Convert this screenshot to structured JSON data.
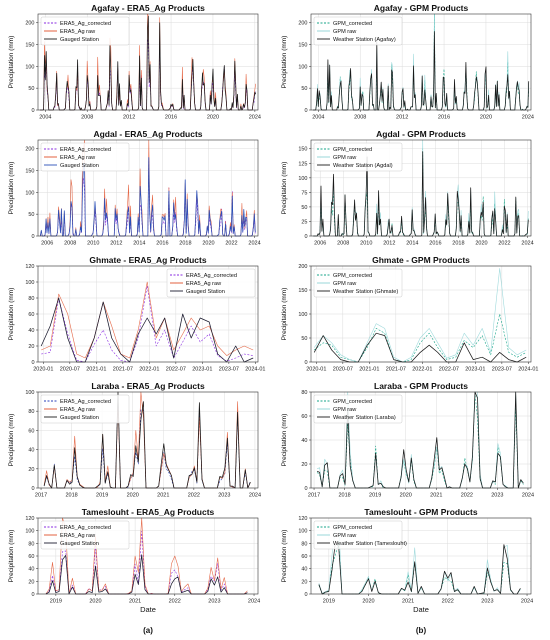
{
  "figure": {
    "column_labels": [
      "(a)",
      "(b)"
    ],
    "xlabel": "Date"
  },
  "chart_data": [
    {
      "type": "line",
      "column": 0,
      "row": 0,
      "title": "Agafay - ERA5_Ag Products",
      "ylabel": "Precipitation (mm)",
      "xlabel": "",
      "x_range": [
        2003.3,
        2024.3
      ],
      "ylim": [
        0,
        220
      ],
      "xticks": [
        2004,
        2008,
        2012,
        2016,
        2020,
        2024
      ],
      "xtick_labels": [
        "2004",
        "2008",
        "2012",
        "2016",
        "2020",
        "2024"
      ],
      "yticks": [
        0,
        50,
        100,
        150,
        200
      ],
      "legend": "top-left",
      "grid": true,
      "seed": 11,
      "series": [
        {
          "name": "ERA5_Ag_corrected",
          "color": "#8a2be2",
          "dash": "2,1.5",
          "scale": 0.85
        },
        {
          "name": "ERA5_Ag raw",
          "color": "#e0502a",
          "dash": "",
          "scale": 1.1
        },
        {
          "name": "Gauged Station",
          "color": "#1a1a1a",
          "dash": "",
          "scale": 1.0
        }
      ],
      "peaks": [
        {
          "x": 2003.9,
          "y": 125
        },
        {
          "x": 2013.8,
          "y": 210
        },
        {
          "x": 2014.9,
          "y": 220
        },
        {
          "x": 2010.2,
          "y": 120
        }
      ]
    },
    {
      "type": "line",
      "column": 1,
      "row": 0,
      "title": "Agafay - GPM Products",
      "ylabel": "Precipitation (mm)",
      "xlabel": "",
      "x_range": [
        2003.3,
        2024.3
      ],
      "ylim": [
        0,
        220
      ],
      "xticks": [
        2004,
        2008,
        2012,
        2016,
        2020,
        2024
      ],
      "xtick_labels": [
        "2004",
        "2008",
        "2012",
        "2016",
        "2020",
        "2024"
      ],
      "yticks": [
        0,
        50,
        100,
        150,
        200
      ],
      "legend": "top-left",
      "grid": true,
      "seed": 12,
      "series": [
        {
          "name": "GPM_corrected",
          "color": "#17a589",
          "dash": "2,1.5",
          "scale": 0.9
        },
        {
          "name": "GPM raw",
          "color": "#8fd3d6",
          "dash": "",
          "scale": 1.05
        },
        {
          "name": "Weather Station (Agafay)",
          "color": "#1a1a1a",
          "dash": "",
          "scale": 1.0
        }
      ],
      "peaks": [
        {
          "x": 2009.6,
          "y": 135
        },
        {
          "x": 2015.1,
          "y": 220
        },
        {
          "x": 2011.0,
          "y": 95
        }
      ]
    },
    {
      "type": "line",
      "column": 0,
      "row": 1,
      "title": "Agdal - ERA5_Ag Products",
      "ylabel": "Precipitation (mm)",
      "xlabel": "",
      "x_range": [
        2005.2,
        2024.3
      ],
      "ylim": [
        0,
        220
      ],
      "xticks": [
        2006,
        2008,
        2010,
        2012,
        2014,
        2016,
        2018,
        2020,
        2022,
        2024
      ],
      "xtick_labels": [
        "2006",
        "2008",
        "2010",
        "2012",
        "2014",
        "2016",
        "2018",
        "2020",
        "2022",
        "2024"
      ],
      "yticks": [
        0,
        50,
        100,
        150,
        200
      ],
      "legend": "top-left",
      "grid": true,
      "seed": 21,
      "series": [
        {
          "name": "ERA5_Ag_corrected",
          "color": "#8a2be2",
          "dash": "2,1.5",
          "scale": 0.8
        },
        {
          "name": "ERA5_Ag raw",
          "color": "#e0502a",
          "dash": "",
          "scale": 1.2
        },
        {
          "name": "Gauged Station",
          "color": "#2a4fb8",
          "dash": "",
          "scale": 1.0
        }
      ],
      "peaks": [
        {
          "x": 2014.8,
          "y": 210
        },
        {
          "x": 2009.2,
          "y": 150
        },
        {
          "x": 2016.6,
          "y": 110
        }
      ]
    },
    {
      "type": "line",
      "column": 1,
      "row": 1,
      "title": "Agdal - GPM Products",
      "ylabel": "Precipitation (mm)",
      "xlabel": "",
      "x_range": [
        2005.2,
        2024.3
      ],
      "ylim": [
        0,
        165
      ],
      "xticks": [
        2006,
        2008,
        2010,
        2012,
        2014,
        2016,
        2018,
        2020,
        2022,
        2024
      ],
      "xtick_labels": [
        "2006",
        "2008",
        "2010",
        "2012",
        "2014",
        "2016",
        "2018",
        "2020",
        "2022",
        "2024"
      ],
      "yticks": [
        0,
        25,
        50,
        75,
        100,
        125,
        150
      ],
      "legend": "top-left",
      "grid": true,
      "seed": 22,
      "series": [
        {
          "name": "GPM_corrected",
          "color": "#17a589",
          "dash": "2,1.5",
          "scale": 0.85
        },
        {
          "name": "GPM raw",
          "color": "#8fd3d6",
          "dash": "",
          "scale": 1.05
        },
        {
          "name": "Weather Station (Agdal)",
          "color": "#1a1a1a",
          "dash": "",
          "scale": 1.0
        }
      ],
      "peaks": [
        {
          "x": 2014.9,
          "y": 160
        },
        {
          "x": 2010.1,
          "y": 115
        },
        {
          "x": 2017.9,
          "y": 80
        }
      ]
    },
    {
      "type": "line",
      "column": 0,
      "row": 2,
      "title": "Ghmate - ERA5_Ag Products",
      "ylabel": "Precipitation (mm)",
      "xlabel": "",
      "x_range": [
        2019.9,
        2024.05
      ],
      "ylim": [
        0,
        120
      ],
      "xticks": [
        2020.0,
        2020.5,
        2021.0,
        2021.5,
        2022.0,
        2022.5,
        2023.0,
        2023.5,
        2024.0
      ],
      "xtick_labels": [
        "2020-01",
        "2020-07",
        "2021-01",
        "2021-07",
        "2022-01",
        "2022-07",
        "2023-01",
        "2023-07",
        "2024-01"
      ],
      "yticks": [
        0,
        20,
        40,
        60,
        80,
        100,
        120
      ],
      "legend": "top-right",
      "grid": true,
      "series": [
        {
          "name": "ERA5_Ag_corrected",
          "color": "#8a2be2",
          "dash": "2,1.5",
          "x": [
            2019.96,
            2020.13,
            2020.29,
            2020.46,
            2020.63,
            2020.79,
            2020.96,
            2021.13,
            2021.29,
            2021.46,
            2021.63,
            2021.79,
            2021.96,
            2022.13,
            2022.29,
            2022.46,
            2022.63,
            2022.79,
            2022.96,
            2023.13,
            2023.29,
            2023.46,
            2023.63,
            2023.79,
            2023.96
          ],
          "y": [
            10,
            12,
            80,
            35,
            2,
            0,
            22,
            40,
            15,
            2,
            0,
            30,
            95,
            20,
            40,
            5,
            25,
            45,
            25,
            35,
            8,
            1,
            5,
            10,
            8
          ]
        },
        {
          "name": "ERA5_Ag raw",
          "color": "#e0502a",
          "dash": "",
          "x": [
            2019.96,
            2020.13,
            2020.29,
            2020.46,
            2020.63,
            2020.79,
            2020.96,
            2021.13,
            2021.29,
            2021.46,
            2021.63,
            2021.79,
            2021.96,
            2022.13,
            2022.29,
            2022.46,
            2022.63,
            2022.79,
            2022.96,
            2023.13,
            2023.29,
            2023.46,
            2023.63,
            2023.79,
            2023.96
          ],
          "y": [
            15,
            20,
            85,
            60,
            10,
            5,
            30,
            75,
            45,
            10,
            5,
            40,
            100,
            30,
            55,
            15,
            35,
            55,
            40,
            45,
            20,
            8,
            15,
            20,
            15
          ]
        },
        {
          "name": "Gauged Station",
          "color": "#1a1a2e",
          "dash": "",
          "x": [
            2019.96,
            2020.13,
            2020.29,
            2020.46,
            2020.63,
            2020.79,
            2020.96,
            2021.13,
            2021.29,
            2021.46,
            2021.63,
            2021.79,
            2021.96,
            2022.13,
            2022.29,
            2022.46,
            2022.63,
            2022.79,
            2022.96,
            2023.13,
            2023.29,
            2023.46,
            2023.63,
            2023.79,
            2023.96
          ],
          "y": [
            20,
            45,
            80,
            30,
            0,
            0,
            30,
            75,
            30,
            10,
            0,
            35,
            55,
            35,
            55,
            5,
            60,
            30,
            55,
            50,
            10,
            0,
            20,
            0,
            5
          ]
        }
      ]
    },
    {
      "type": "line",
      "column": 1,
      "row": 2,
      "title": "Ghmate - GPM Products",
      "ylabel": "Precipitation (mm)",
      "xlabel": "",
      "x_range": [
        2019.9,
        2024.05
      ],
      "ylim": [
        0,
        200
      ],
      "xticks": [
        2020.0,
        2020.5,
        2021.0,
        2021.5,
        2022.0,
        2022.5,
        2023.0,
        2023.5,
        2024.0
      ],
      "xtick_labels": [
        "2020-01",
        "2020-07",
        "2021-01",
        "2021-07",
        "2022-01",
        "2022-07",
        "2023-01",
        "2023-07",
        "2024-01"
      ],
      "yticks": [
        0,
        50,
        100,
        150,
        200
      ],
      "legend": "top-left",
      "grid": true,
      "series": [
        {
          "name": "GPM_corrected",
          "color": "#17a589",
          "dash": "2,1.5",
          "x": [
            2019.96,
            2020.13,
            2020.29,
            2020.46,
            2020.63,
            2020.79,
            2020.96,
            2021.13,
            2021.29,
            2021.46,
            2021.63,
            2021.79,
            2021.96,
            2022.13,
            2022.29,
            2022.46,
            2022.63,
            2022.79,
            2022.96,
            2023.13,
            2023.29,
            2023.46,
            2023.63,
            2023.79,
            2023.96
          ],
          "y": [
            25,
            40,
            35,
            10,
            5,
            0,
            30,
            70,
            60,
            5,
            0,
            5,
            40,
            60,
            30,
            5,
            10,
            45,
            30,
            55,
            15,
            100,
            20,
            10,
            20
          ]
        },
        {
          "name": "GPM raw",
          "color": "#8fd3d6",
          "dash": "",
          "x": [
            2019.96,
            2020.13,
            2020.29,
            2020.46,
            2020.63,
            2020.79,
            2020.96,
            2021.13,
            2021.29,
            2021.46,
            2021.63,
            2021.79,
            2021.96,
            2022.13,
            2022.29,
            2022.46,
            2022.63,
            2022.79,
            2022.96,
            2023.13,
            2023.29,
            2023.46,
            2023.63,
            2023.79,
            2023.96
          ],
          "y": [
            30,
            55,
            40,
            15,
            5,
            0,
            40,
            80,
            70,
            10,
            0,
            10,
            50,
            70,
            40,
            8,
            15,
            60,
            35,
            70,
            20,
            195,
            30,
            15,
            25
          ]
        },
        {
          "name": "Weather Station (Ghmate)",
          "color": "#1a1a1a",
          "dash": "",
          "x": [
            2019.96,
            2020.13,
            2020.29,
            2020.46,
            2020.63,
            2020.79,
            2020.96,
            2021.13,
            2021.29,
            2021.46,
            2021.63,
            2021.79,
            2021.96,
            2022.13,
            2022.29,
            2022.46,
            2022.63,
            2022.79,
            2022.96,
            2023.13,
            2023.29,
            2023.46,
            2023.63,
            2023.79,
            2023.96
          ],
          "y": [
            20,
            55,
            25,
            5,
            0,
            0,
            35,
            60,
            55,
            5,
            0,
            0,
            20,
            35,
            20,
            0,
            0,
            40,
            5,
            10,
            0,
            20,
            5,
            0,
            10
          ]
        }
      ]
    },
    {
      "type": "line",
      "column": 0,
      "row": 3,
      "title": "Laraba - ERA5_Ag Products",
      "ylabel": "Precipitation (mm)",
      "xlabel": "",
      "x_range": [
        2016.9,
        2024.1
      ],
      "ylim": [
        0,
        100
      ],
      "xticks": [
        2017,
        2018,
        2019,
        2020,
        2021,
        2022,
        2023,
        2024
      ],
      "xtick_labels": [
        "2017",
        "2018",
        "2019",
        "2020",
        "2021",
        "2022",
        "2023",
        "2024"
      ],
      "yticks": [
        0,
        20,
        40,
        60,
        80,
        100
      ],
      "legend": "top-left",
      "grid": true,
      "seed": 41,
      "monthly": true,
      "series": [
        {
          "name": "ERA5_Ag_corrected",
          "color": "#2a3fb8",
          "dash": "2,1.5",
          "scale": 0.9
        },
        {
          "name": "ERA5_Ag raw",
          "color": "#e0502a",
          "dash": "",
          "scale": 1.1
        },
        {
          "name": "Gauged Station",
          "color": "#1a1a1a",
          "dash": "",
          "scale": 1.0
        }
      ],
      "peaks": [
        {
          "x": 2019.5,
          "y": 95
        },
        {
          "x": 2020.3,
          "y": 90
        },
        {
          "x": 2022.2,
          "y": 85
        },
        {
          "x": 2023.4,
          "y": 75
        }
      ]
    },
    {
      "type": "line",
      "column": 1,
      "row": 3,
      "title": "Laraba - GPM Products",
      "ylabel": "Precipitation (mm)",
      "xlabel": "",
      "x_range": [
        2016.9,
        2024.1
      ],
      "ylim": [
        0,
        80
      ],
      "xticks": [
        2017,
        2018,
        2019,
        2020,
        2021,
        2022,
        2023,
        2024
      ],
      "xtick_labels": [
        "2017",
        "2018",
        "2019",
        "2020",
        "2021",
        "2022",
        "2023",
        "2024"
      ],
      "yticks": [
        0,
        20,
        40,
        60,
        80
      ],
      "legend": "top-left",
      "grid": true,
      "seed": 42,
      "monthly": true,
      "series": [
        {
          "name": "GPM_corrected",
          "color": "#17a589",
          "dash": "2,1.5",
          "scale": 0.9
        },
        {
          "name": "GPM raw",
          "color": "#8fd3d6",
          "dash": "",
          "scale": 1.1
        },
        {
          "name": "Weather Station (Laraba)",
          "color": "#1a1a1a",
          "dash": "",
          "scale": 1.0
        }
      ],
      "peaks": [
        {
          "x": 2022.3,
          "y": 78
        },
        {
          "x": 2023.6,
          "y": 73
        },
        {
          "x": 2018.1,
          "y": 65
        }
      ]
    },
    {
      "type": "line",
      "column": 0,
      "row": 4,
      "title": "Tameslouht - ERA5_Ag Products",
      "ylabel": "Precipitation (mm)",
      "xlabel": "Date",
      "x_range": [
        2018.55,
        2024.1
      ],
      "ylim": [
        0,
        120
      ],
      "xticks": [
        2019,
        2020,
        2021,
        2022,
        2023,
        2024
      ],
      "xtick_labels": [
        "2019",
        "2020",
        "2021",
        "2022",
        "2023",
        "2024"
      ],
      "yticks": [
        0,
        20,
        40,
        60,
        80,
        100,
        120
      ],
      "legend": "top-left",
      "grid": true,
      "seed": 51,
      "monthly": true,
      "series": [
        {
          "name": "ERA5_Ag_corrected",
          "color": "#8a2be2",
          "dash": "2,1.5",
          "scale": 0.95
        },
        {
          "name": "ERA5_Ag raw",
          "color": "#e0502a",
          "dash": "",
          "scale": 1.2
        },
        {
          "name": "Gauged Station",
          "color": "#1a1a2e",
          "dash": "",
          "scale": 0.6
        }
      ],
      "peaks": [
        {
          "x": 2021.15,
          "y": 110
        },
        {
          "x": 2019.2,
          "y": 90
        },
        {
          "x": 2020.0,
          "y": 80
        }
      ]
    },
    {
      "type": "line",
      "column": 1,
      "row": 4,
      "title": "Tameslouht - GPM Products",
      "ylabel": "Precipitation (mm)",
      "xlabel": "Date",
      "x_range": [
        2018.55,
        2024.1
      ],
      "ylim": [
        0,
        120
      ],
      "xticks": [
        2019,
        2020,
        2021,
        2022,
        2023,
        2024
      ],
      "xtick_labels": [
        "2019",
        "2020",
        "2021",
        "2022",
        "2023",
        "2024"
      ],
      "yticks": [
        0,
        20,
        40,
        60,
        80,
        100,
        120
      ],
      "legend": "top-left",
      "grid": true,
      "seed": 52,
      "monthly": true,
      "series": [
        {
          "name": "GPM_corrected",
          "color": "#17a589",
          "dash": "2,1.5",
          "scale": 0.85
        },
        {
          "name": "GPM raw",
          "color": "#8fd3d6",
          "dash": "",
          "scale": 1.0
        },
        {
          "name": "Weather Station (Tameslouht)",
          "color": "#1a1a1a",
          "dash": "",
          "scale": 0.9
        }
      ],
      "peaks": [
        {
          "x": 2019.2,
          "y": 95
        },
        {
          "x": 2023.45,
          "y": 70
        },
        {
          "x": 2021.15,
          "y": 65
        }
      ]
    }
  ]
}
